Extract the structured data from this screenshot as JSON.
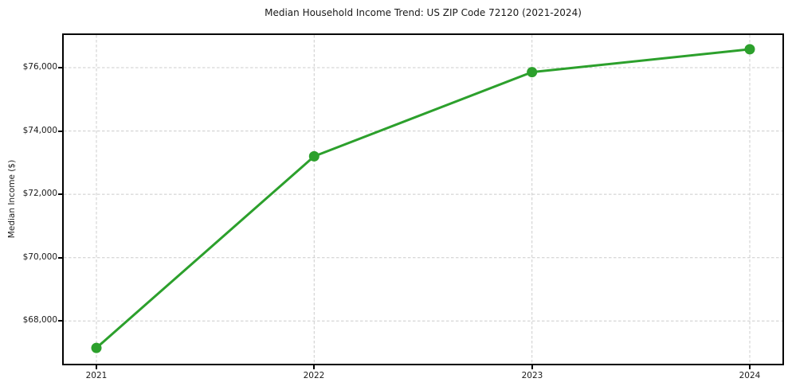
{
  "figure": {
    "background": "#ffffff",
    "text_color": "#1a1a1a",
    "spine_color": "#000000"
  },
  "chart_data": {
    "type": "line",
    "title": "Median Household Income Trend: US ZIP Code 72120 (2021-2024)",
    "xlabel": "",
    "ylabel": "Median Income ($)",
    "x": [
      2021,
      2022,
      2023,
      2024
    ],
    "xtick_labels": [
      "2021",
      "2022",
      "2023",
      "2024"
    ],
    "series": [
      {
        "values": [
          67150,
          73200,
          75860,
          76580
        ],
        "color": "#2ca02c",
        "marker": "circle"
      }
    ],
    "xlim": [
      2020.85,
      2024.15
    ],
    "ylim": [
      66650,
      77030
    ],
    "yticks": [
      68000,
      70000,
      72000,
      74000,
      76000
    ],
    "ytick_labels": [
      "$68,000",
      "$70,000",
      "$72,000",
      "$74,000",
      "$76,000"
    ],
    "grid": {
      "visible": true,
      "style": "dashed",
      "color": "#cccccc"
    },
    "legend": {
      "visible": false
    }
  }
}
